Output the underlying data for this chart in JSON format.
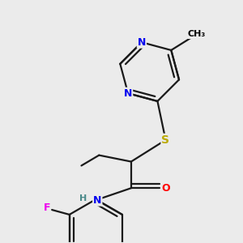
{
  "bg_color": "#ebebeb",
  "atom_colors": {
    "C": "#000000",
    "N": "#0000ee",
    "O": "#ff0000",
    "S": "#bbaa00",
    "F": "#ee00ee",
    "H": "#4a8a8a"
  },
  "bond_color": "#1a1a1a",
  "bond_lw": 1.6,
  "figsize": [
    3.0,
    3.0
  ],
  "dpi": 100
}
